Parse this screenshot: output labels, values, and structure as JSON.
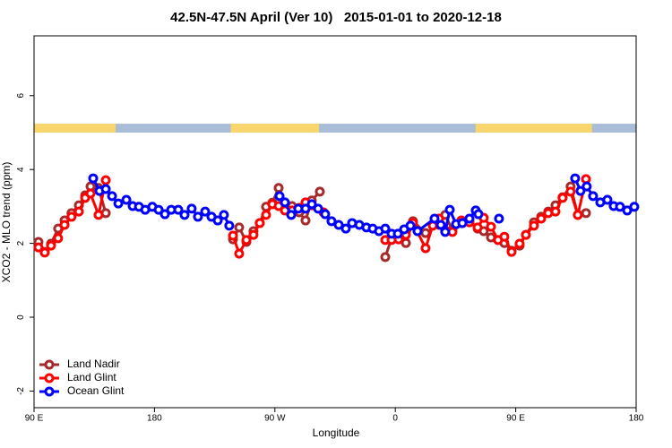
{
  "chart_data": {
    "type": "line",
    "title": "42.5N-47.5N April (Ver 10)   2015-01-01 to 2020-12-18",
    "x_label": "Longitude",
    "y_label": "XCO2 - MLO trend (ppm)",
    "xlim": [
      90,
      540
    ],
    "ylim": [
      -2.45,
      7.62
    ],
    "xticks": [
      {
        "value": 90,
        "label": "90 E"
      },
      180,
      {
        "value": 270,
        "label": "90 W"
      },
      {
        "value": 360,
        "label": "0"
      },
      {
        "value": 450,
        "label": "90 E"
      },
      {
        "value": 540,
        "label": "180"
      }
    ],
    "yticks": [
      -2,
      0,
      2,
      4,
      6
    ],
    "legend": "bottom-left",
    "strip": {
      "ylim": [
        5.0,
        5.24
      ],
      "ocean_color": "#a9bcd8",
      "land_color": "#f9d56e",
      "land": [
        [
          90,
          151
        ],
        [
          237,
          303
        ],
        [
          420,
          507
        ]
      ]
    },
    "series": [
      {
        "name": "Land Nadir",
        "color": "#a52a2a",
        "x": [
          93.3,
          98,
          102.7,
          108,
          112.8,
          118,
          123.5,
          128.2,
          132.2,
          138.2,
          143.6,
          null,
          238.7,
          243.3,
          248.7,
          254,
          258.7,
          263.4,
          268.1,
          272.8,
          277.5,
          282.8,
          288.2,
          292.9,
          297.6,
          303.6,
          null,
          352.5,
          357.2,
          362.5,
          367.9,
          373.2,
          382.6,
          392.7,
          397.3,
          402.7,
          409.4,
          415.4,
          421.5,
          426.1,
          431.5,
          436.8,
          441.5,
          446.9,
          452.9,
          457.6,
          463.6,
          469,
          474.3,
          479.7,
          485,
          491,
          496.4,
          502.5
        ],
        "values": [
          2.04,
          1.77,
          1.99,
          2.4,
          2.62,
          2.82,
          3.03,
          3.3,
          3.54,
          3.5,
          2.82,
          null,
          2.11,
          2.43,
          2.04,
          2.33,
          2.55,
          2.99,
          3.1,
          3.5,
          3.06,
          3.01,
          2.84,
          2.62,
          3.16,
          3.4,
          null,
          1.63,
          2.14,
          2.16,
          2.01,
          2.6,
          2.28,
          2.5,
          2.77,
          2.35,
          2.55,
          2.62,
          2.4,
          2.33,
          2.16,
          2.09,
          2.01,
          1.8,
          1.94,
          2.23,
          2.57,
          2.72,
          2.86,
          3.03,
          3.25,
          3.54,
          2.77,
          2.82
        ]
      },
      {
        "name": "Land Glint",
        "color": "#ff0000",
        "x": [
          93.3,
          98,
          102.7,
          108,
          112.8,
          118,
          123.5,
          128.2,
          132.2,
          138.2,
          143.6,
          null,
          238.7,
          243.3,
          248.7,
          254,
          258.7,
          263.4,
          268.1,
          272.8,
          277.5,
          282.8,
          288.2,
          292.9,
          297.6,
          306.3,
          null,
          352.5,
          357.2,
          362.5,
          367.9,
          373.2,
          382.6,
          388,
          392.7,
          397.3,
          402.7,
          409.4,
          415.4,
          421.5,
          426.1,
          431.5,
          436.8,
          441.5,
          446.9,
          452.9,
          457.6,
          463.6,
          469,
          474.3,
          479.7,
          485,
          491,
          496.4,
          502.5
        ],
        "values": [
          1.89,
          1.75,
          1.94,
          2.14,
          2.5,
          2.72,
          2.86,
          3.23,
          3.35,
          2.77,
          3.71,
          null,
          2.21,
          1.72,
          2.09,
          2.23,
          2.55,
          2.77,
          3.06,
          3.01,
          2.89,
          2.89,
          2.96,
          3.11,
          3.03,
          2.84,
          null,
          2.09,
          2.09,
          2.11,
          2.23,
          2.55,
          1.87,
          2.48,
          2.67,
          2.35,
          2.31,
          2.62,
          2.57,
          2.43,
          2.69,
          2.45,
          2.09,
          2.18,
          1.77,
          1.99,
          2.23,
          2.48,
          2.67,
          2.82,
          2.86,
          3.23,
          3.4,
          2.77,
          3.74
        ]
      },
      {
        "name": "Ocean Glint",
        "color": "#0000ff",
        "x": [
          134.2,
          138.9,
          143.6,
          148.3,
          153,
          159,
          163.7,
          168.4,
          173.1,
          178.4,
          183.1,
          187.8,
          192.5,
          197.8,
          202.5,
          207.8,
          212.5,
          217.9,
          222.6,
          227.3,
          231.9,
          235.9,
          null,
          273.5,
          277.5,
          282.2,
          287.5,
          292.9,
          297.6,
          302.3,
          307.6,
          312.3,
          317.7,
          323,
          327.7,
          333.1,
          338.4,
          343.1,
          347.8,
          352.5,
          357.2,
          361.9,
          366.6,
          371.3,
          376.6,
          389.3,
          394,
          397.3,
          400.7,
          405.4,
          410.1,
          415.4,
          420.1,
          422.1,
          null,
          437.5,
          null,
          494.4,
          498.4,
          503.1,
          507.8,
          513.2,
          518.5,
          523.2,
          527.9,
          533.3,
          538.6
        ],
        "values": [
          3.76,
          3.42,
          3.47,
          3.28,
          3.08,
          3.18,
          3.01,
          2.99,
          2.91,
          2.99,
          2.91,
          2.79,
          2.91,
          2.91,
          2.77,
          2.94,
          2.72,
          2.86,
          2.72,
          2.62,
          2.77,
          2.48,
          null,
          3.28,
          3.11,
          2.77,
          2.94,
          2.94,
          3.06,
          2.94,
          2.79,
          2.6,
          2.5,
          2.4,
          2.55,
          2.5,
          2.43,
          2.4,
          2.33,
          2.4,
          2.26,
          2.26,
          2.38,
          2.48,
          2.33,
          2.67,
          2.5,
          2.31,
          2.91,
          2.52,
          2.55,
          2.67,
          2.89,
          2.79,
          null,
          2.67,
          null,
          3.76,
          3.42,
          3.54,
          3.28,
          3.11,
          3.18,
          3.01,
          2.99,
          2.89,
          2.99
        ]
      }
    ]
  }
}
